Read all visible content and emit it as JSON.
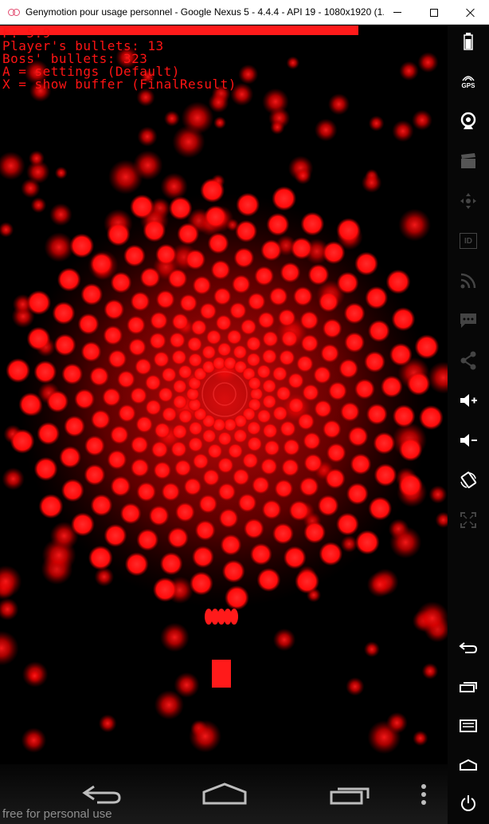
{
  "window": {
    "title": "Genymotion pour usage personnel - Google Nexus 5 - 4.4.4 - API 19 - 1080x1920 (1...",
    "minimize": "minimize-icon",
    "maximize": "maximize-icon",
    "close": "close-icon"
  },
  "game": {
    "boss_health_fraction": 0.8,
    "hud_lines": [
      "F: 5:9",
      "Player's bullets: 13",
      "Boss' bullets: 323",
      "A = settings (Default)",
      "X = show buffer (FinalResult)"
    ],
    "colors": {
      "bullet": "#ff1a1a",
      "hud": "#ff1414",
      "background": "#000000"
    }
  },
  "navbar": {
    "back": "back-icon",
    "home": "home-icon",
    "recents": "recents-icon",
    "menu": "menu-dots-icon",
    "watermark": "free for personal use"
  },
  "toolbar": {
    "items": [
      "battery-icon",
      "gps-icon",
      "webcam-icon",
      "clapper-icon",
      "dpad-icon",
      "id-icon",
      "rss-icon",
      "sms-icon",
      "share-icon",
      "volume-up-icon",
      "volume-down-icon",
      "rotate-icon",
      "fullscreen-icon",
      "back-icon",
      "recents-icon",
      "menu-icon",
      "home-icon",
      "power-icon"
    ],
    "gps_label": "GPS",
    "id_label": "ID"
  }
}
